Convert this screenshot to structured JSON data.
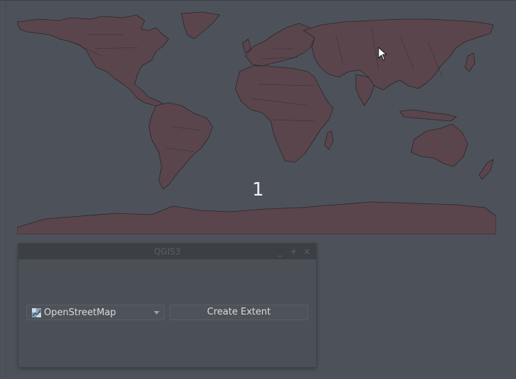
{
  "map": {
    "label": "1",
    "land_fill": "#5a454d",
    "land_stroke": "#2c2628",
    "background": "#4d525a"
  },
  "dialog": {
    "title": "QGIS3",
    "controls": {
      "minimize": "_",
      "maximize": "+",
      "close": "×"
    },
    "layer_select": {
      "value": "OpenStreetMap",
      "icon": "osm-layer-icon"
    },
    "create_extent_label": "Create Extent"
  }
}
